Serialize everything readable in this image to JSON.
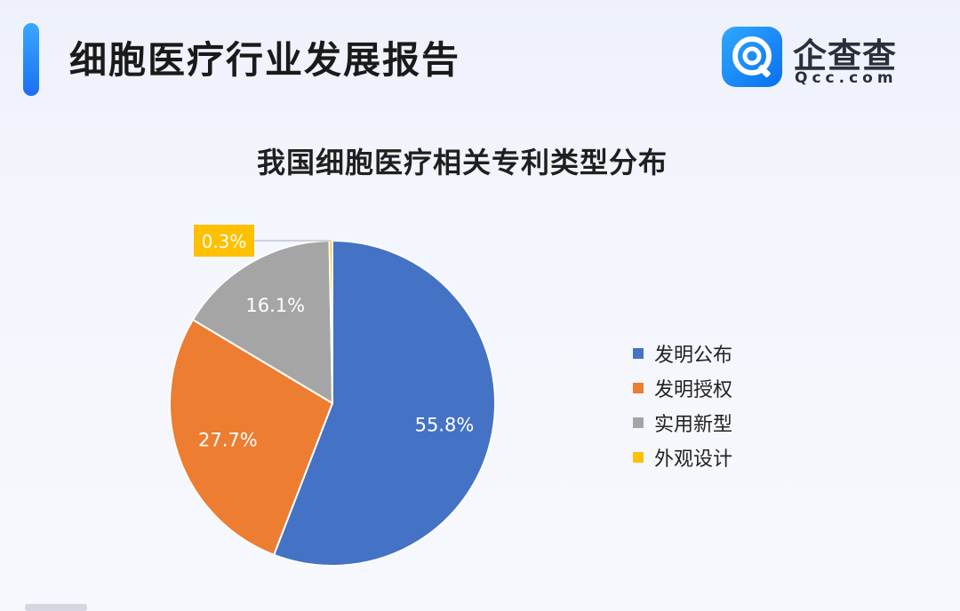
{
  "header": {
    "title": "细胞医疗行业发展报告",
    "logo_name": "企查查",
    "logo_domain": "Qcc.com"
  },
  "colors": {
    "accent": "#1c6ff2",
    "slices": [
      "#4472c4",
      "#ed7d31",
      "#a5a5a5",
      "#ffc000"
    ]
  },
  "chart_data": {
    "type": "pie",
    "title": "我国细胞医疗相关专利类型分布",
    "categories": [
      "发明公布",
      "发明授权",
      "实用新型",
      "外观设计"
    ],
    "values": [
      55.8,
      27.7,
      16.1,
      0.3
    ],
    "data_labels": [
      "55.8%",
      "27.7%",
      "16.1%",
      "0.3%"
    ],
    "legend_position": "right"
  }
}
